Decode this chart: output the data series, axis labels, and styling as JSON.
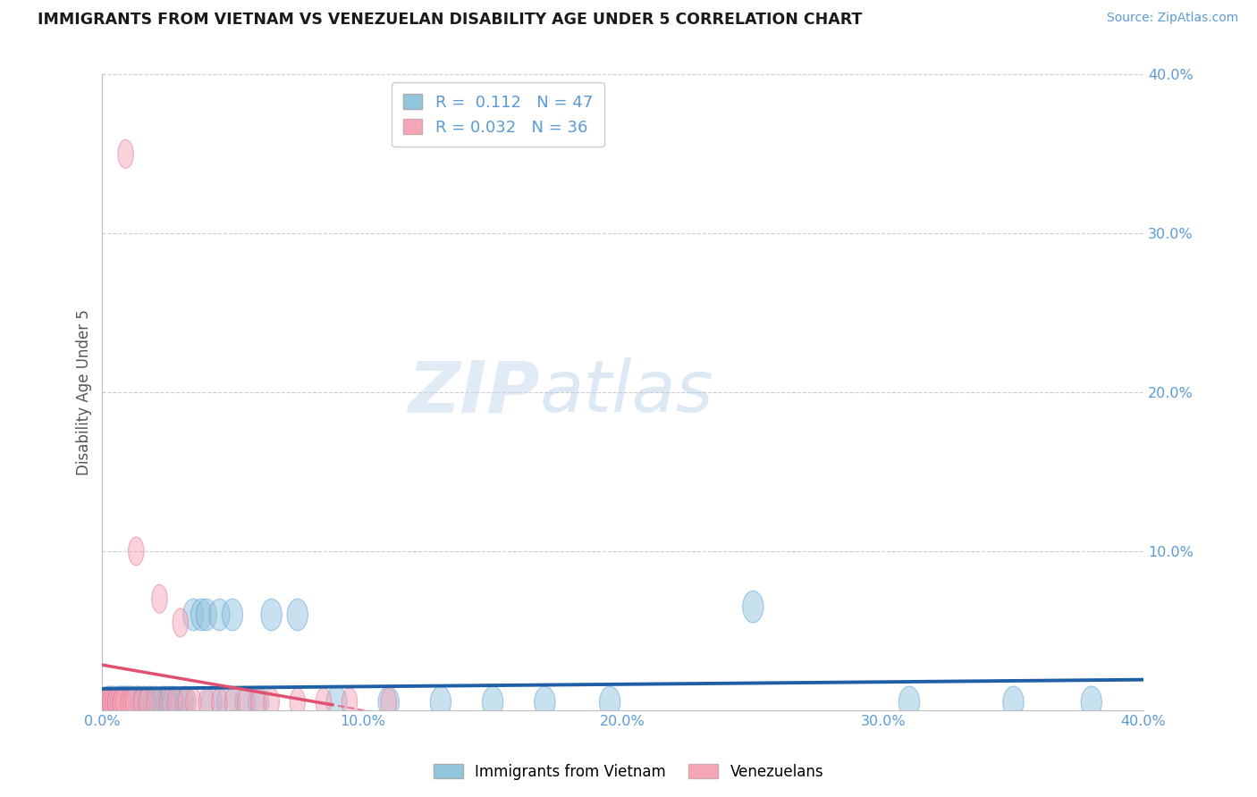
{
  "title": "IMMIGRANTS FROM VIETNAM VS VENEZUELAN DISABILITY AGE UNDER 5 CORRELATION CHART",
  "source_text": "Source: ZipAtlas.com",
  "ylabel": "Disability Age Under 5",
  "xlim": [
    0.0,
    0.4
  ],
  "ylim": [
    0.0,
    0.4
  ],
  "xtick_labels": [
    "0.0%",
    "10.0%",
    "20.0%",
    "30.0%",
    "40.0%"
  ],
  "xtick_vals": [
    0.0,
    0.1,
    0.2,
    0.3,
    0.4
  ],
  "ytick_labels": [
    "10.0%",
    "20.0%",
    "30.0%",
    "40.0%"
  ],
  "ytick_vals": [
    0.1,
    0.2,
    0.3,
    0.4
  ],
  "blue_R": 0.112,
  "blue_N": 47,
  "pink_R": 0.032,
  "pink_N": 36,
  "blue_color": "#92c5de",
  "pink_color": "#f4a6b8",
  "blue_edge_color": "#5b9bd5",
  "pink_edge_color": "#e07090",
  "blue_line_color": "#1f5fa6",
  "pink_line_color": "#e05070",
  "watermark_zip": "ZIP",
  "watermark_atlas": "atlas",
  "legend_label_blue": "Immigrants from Vietnam",
  "legend_label_pink": "Venezuelans",
  "blue_x": [
    0.002,
    0.003,
    0.004,
    0.005,
    0.006,
    0.007,
    0.007,
    0.008,
    0.009,
    0.01,
    0.01,
    0.011,
    0.012,
    0.013,
    0.014,
    0.015,
    0.016,
    0.017,
    0.018,
    0.02,
    0.022,
    0.023,
    0.025,
    0.027,
    0.03,
    0.032,
    0.035,
    0.038,
    0.04,
    0.042,
    0.045,
    0.048,
    0.05,
    0.055,
    0.06,
    0.065,
    0.075,
    0.09,
    0.11,
    0.13,
    0.15,
    0.17,
    0.195,
    0.25,
    0.31,
    0.35,
    0.38
  ],
  "blue_y": [
    0.005,
    0.005,
    0.005,
    0.004,
    0.005,
    0.004,
    0.005,
    0.005,
    0.005,
    0.004,
    0.005,
    0.005,
    0.004,
    0.005,
    0.005,
    0.004,
    0.005,
    0.004,
    0.005,
    0.005,
    0.004,
    0.005,
    0.005,
    0.005,
    0.004,
    0.005,
    0.06,
    0.06,
    0.06,
    0.005,
    0.06,
    0.005,
    0.06,
    0.005,
    0.005,
    0.06,
    0.06,
    0.005,
    0.005,
    0.005,
    0.005,
    0.005,
    0.005,
    0.065,
    0.005,
    0.005,
    0.005
  ],
  "pink_x": [
    0.001,
    0.002,
    0.002,
    0.003,
    0.003,
    0.004,
    0.005,
    0.005,
    0.006,
    0.007,
    0.007,
    0.008,
    0.009,
    0.01,
    0.011,
    0.012,
    0.013,
    0.015,
    0.017,
    0.02,
    0.022,
    0.025,
    0.028,
    0.03,
    0.032,
    0.035,
    0.04,
    0.045,
    0.05,
    0.055,
    0.06,
    0.065,
    0.075,
    0.085,
    0.095,
    0.11
  ],
  "pink_y": [
    0.005,
    0.005,
    0.005,
    0.005,
    0.005,
    0.005,
    0.005,
    0.005,
    0.005,
    0.005,
    0.005,
    0.005,
    0.35,
    0.005,
    0.005,
    0.005,
    0.1,
    0.005,
    0.005,
    0.005,
    0.07,
    0.005,
    0.005,
    0.055,
    0.005,
    0.005,
    0.005,
    0.005,
    0.005,
    0.005,
    0.005,
    0.005,
    0.005,
    0.005,
    0.005,
    0.005
  ]
}
